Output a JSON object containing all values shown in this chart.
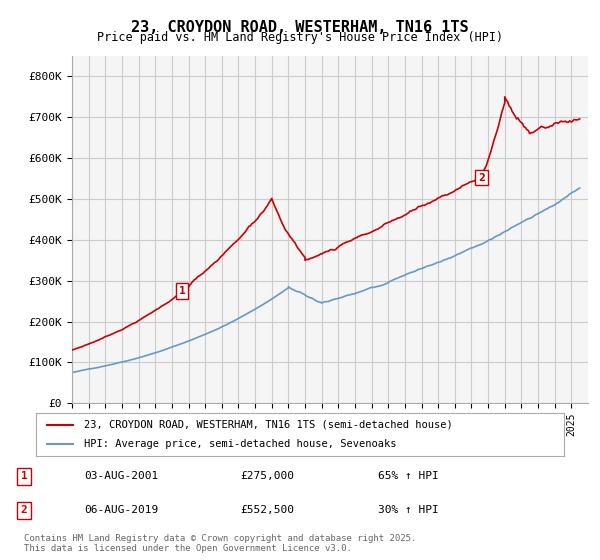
{
  "title": "23, CROYDON ROAD, WESTERHAM, TN16 1TS",
  "subtitle": "Price paid vs. HM Land Registry's House Price Index (HPI)",
  "ylabel_ticks": [
    "£0",
    "£100K",
    "£200K",
    "£300K",
    "£400K",
    "£500K",
    "£600K",
    "£700K",
    "£800K"
  ],
  "ytick_values": [
    0,
    100000,
    200000,
    300000,
    400000,
    500000,
    600000,
    700000,
    800000
  ],
  "ylim": [
    0,
    850000
  ],
  "xlim_start": 1995,
  "xlim_end": 2026,
  "legend_entry1": "23, CROYDON ROAD, WESTERHAM, TN16 1TS (semi-detached house)",
  "legend_entry2": "HPI: Average price, semi-detached house, Sevenoaks",
  "sale1_date": "03-AUG-2001",
  "sale1_price": "£275,000",
  "sale1_hpi": "65% ↑ HPI",
  "sale2_date": "06-AUG-2019",
  "sale2_price": "£552,500",
  "sale2_hpi": "30% ↑ HPI",
  "footer": "Contains HM Land Registry data © Crown copyright and database right 2025.\nThis data is licensed under the Open Government Licence v3.0.",
  "line1_color": "#cc0000",
  "line2_color": "#6699cc",
  "bg_color": "#f5f5f5",
  "grid_color": "#cccccc",
  "marker1_x": 2001.6,
  "marker1_y": 275000,
  "marker2_x": 2019.6,
  "marker2_y": 552500
}
